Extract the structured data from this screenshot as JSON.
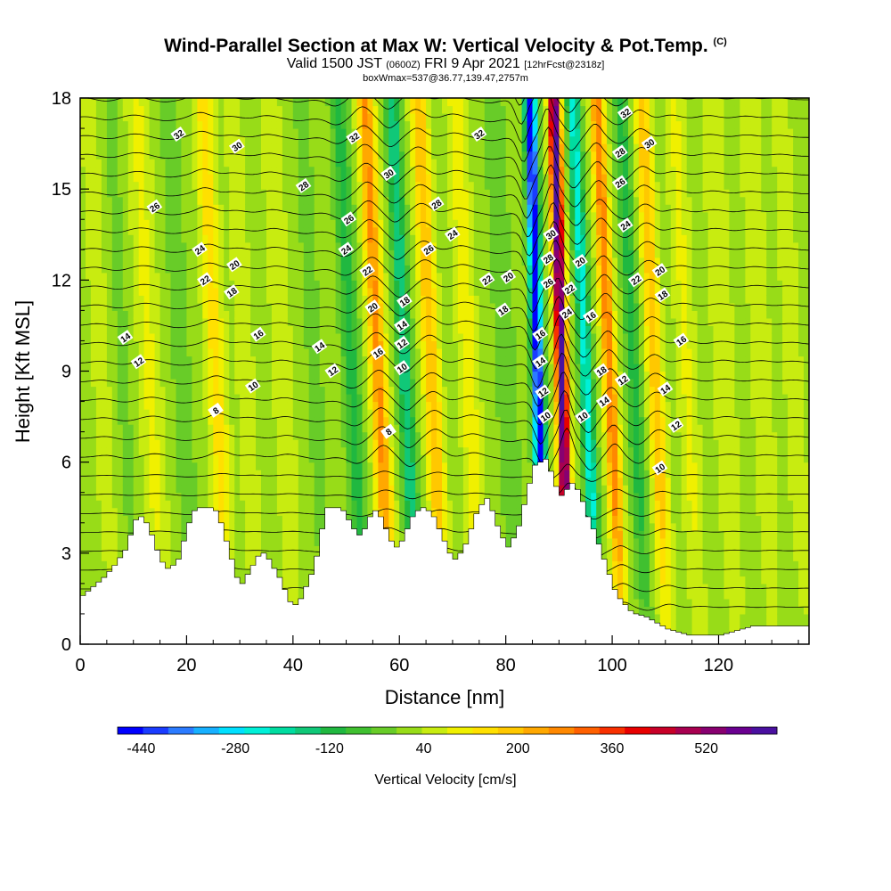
{
  "header": {
    "title": "Wind-Parallel Section at Max W: Vertical Velocity & Pot.Temp.",
    "title_mark": "(C)",
    "valid_prefix": "Valid 1500 JST",
    "valid_zulu": "(0600Z)",
    "valid_date": "FRI 9 Apr 2021",
    "forecast_info": "[12hrFcst@2318z]",
    "box_info": "boxWmax=537@36.77,139.47,2757m"
  },
  "chart_data": {
    "type": "heatmap",
    "title": "Wind-Parallel Section at Max W: Vertical Velocity & Pot.Temp.",
    "xlabel": "Distance [nm]",
    "ylabel": "Height [Kft MSL]",
    "xlim": [
      0,
      137
    ],
    "ylim": [
      0,
      18
    ],
    "x_ticks": [
      0,
      20,
      40,
      60,
      80,
      100,
      120
    ],
    "y_ticks": [
      0,
      3,
      6,
      9,
      12,
      15,
      18
    ],
    "colorbar": {
      "label": "Vertical Velocity [cm/s]",
      "min": -480,
      "max": 640,
      "step": 40,
      "tick_values": [
        -440,
        -280,
        -120,
        40,
        200,
        360,
        520
      ],
      "tick_labels": [
        "-440",
        "-280",
        "-120",
        "40",
        "200",
        "360",
        "520"
      ],
      "colors": [
        "#0000ff",
        "#1a3cff",
        "#2b7bff",
        "#17b0ff",
        "#00e0ff",
        "#00f0d8",
        "#00dca0",
        "#10c878",
        "#20b840",
        "#40c030",
        "#68cc28",
        "#98dc18",
        "#c8ec10",
        "#f0f000",
        "#ffe000",
        "#ffc800",
        "#ffa800",
        "#ff8800",
        "#ff6000",
        "#f83000",
        "#e80000",
        "#c80028",
        "#a80050",
        "#880070",
        "#6a0090",
        "#4a10a0"
      ]
    },
    "terrain_top_kft": [
      [
        0,
        1.6
      ],
      [
        2,
        1.9
      ],
      [
        4,
        2.2
      ],
      [
        6,
        2.6
      ],
      [
        8,
        3.1
      ],
      [
        9,
        3.6
      ],
      [
        10,
        4.1
      ],
      [
        11,
        4.2
      ],
      [
        12,
        4.0
      ],
      [
        13,
        3.6
      ],
      [
        14,
        3.1
      ],
      [
        15,
        2.7
      ],
      [
        16,
        2.5
      ],
      [
        17,
        2.6
      ],
      [
        18,
        2.8
      ],
      [
        19,
        3.4
      ],
      [
        20,
        4.0
      ],
      [
        21,
        4.4
      ],
      [
        22,
        4.5
      ],
      [
        24,
        4.5
      ],
      [
        25,
        4.4
      ],
      [
        26,
        4.0
      ],
      [
        27,
        3.4
      ],
      [
        28,
        2.8
      ],
      [
        29,
        2.2
      ],
      [
        30,
        2.0
      ],
      [
        31,
        2.3
      ],
      [
        32,
        2.6
      ],
      [
        33,
        2.9
      ],
      [
        34,
        3.0
      ],
      [
        35,
        2.8
      ],
      [
        36,
        2.5
      ],
      [
        37,
        2.2
      ],
      [
        38,
        1.8
      ],
      [
        39,
        1.4
      ],
      [
        40,
        1.3
      ],
      [
        41,
        1.5
      ],
      [
        42,
        1.9
      ],
      [
        43,
        2.3
      ],
      [
        44,
        2.9
      ],
      [
        45,
        3.8
      ],
      [
        46,
        4.5
      ],
      [
        48,
        4.5
      ],
      [
        49,
        4.4
      ],
      [
        50,
        4.1
      ],
      [
        51,
        3.8
      ],
      [
        52,
        3.6
      ],
      [
        53,
        3.8
      ],
      [
        54,
        4.2
      ],
      [
        55,
        4.4
      ],
      [
        56,
        4.2
      ],
      [
        57,
        3.8
      ],
      [
        58,
        3.4
      ],
      [
        59,
        3.2
      ],
      [
        60,
        3.4
      ],
      [
        61,
        3.8
      ],
      [
        62,
        4.2
      ],
      [
        63,
        4.4
      ],
      [
        64,
        4.5
      ],
      [
        65,
        4.4
      ],
      [
        66,
        4.2
      ],
      [
        67,
        3.8
      ],
      [
        68,
        3.4
      ],
      [
        69,
        3.0
      ],
      [
        70,
        2.8
      ],
      [
        71,
        3.0
      ],
      [
        72,
        3.3
      ],
      [
        73,
        3.8
      ],
      [
        74,
        4.3
      ],
      [
        75,
        4.6
      ],
      [
        76,
        4.8
      ],
      [
        77,
        4.4
      ],
      [
        78,
        3.9
      ],
      [
        79,
        3.5
      ],
      [
        80,
        3.2
      ],
      [
        81,
        3.5
      ],
      [
        82,
        3.9
      ],
      [
        83,
        4.6
      ],
      [
        84,
        5.3
      ],
      [
        85,
        5.9
      ],
      [
        86,
        6.0
      ],
      [
        87,
        6.1
      ],
      [
        88,
        5.7
      ],
      [
        89,
        5.2
      ],
      [
        90,
        4.9
      ],
      [
        91,
        5.1
      ],
      [
        92,
        5.3
      ],
      [
        93,
        5.1
      ],
      [
        94,
        4.7
      ],
      [
        95,
        4.2
      ],
      [
        96,
        3.8
      ],
      [
        97,
        3.3
      ],
      [
        98,
        2.8
      ],
      [
        99,
        2.3
      ],
      [
        100,
        1.8
      ],
      [
        101,
        1.5
      ],
      [
        102,
        1.3
      ],
      [
        103,
        1.1
      ],
      [
        104,
        1.0
      ],
      [
        106,
        0.9
      ],
      [
        108,
        0.7
      ],
      [
        110,
        0.5
      ],
      [
        112,
        0.4
      ],
      [
        114,
        0.3
      ],
      [
        116,
        0.3
      ],
      [
        118,
        0.3
      ],
      [
        120,
        0.3
      ],
      [
        122,
        0.4
      ],
      [
        124,
        0.5
      ],
      [
        126,
        0.6
      ],
      [
        128,
        0.6
      ],
      [
        130,
        0.6
      ],
      [
        132,
        0.6
      ],
      [
        134,
        0.6
      ],
      [
        137,
        0.6
      ]
    ],
    "theta_contour_labels": [
      {
        "x": 18.5,
        "y": 16.8,
        "v": "32"
      },
      {
        "x": 29.5,
        "y": 16.4,
        "v": "30"
      },
      {
        "x": 51.5,
        "y": 16.7,
        "v": "32"
      },
      {
        "x": 75.0,
        "y": 16.8,
        "v": "32"
      },
      {
        "x": 58.0,
        "y": 15.5,
        "v": "30"
      },
      {
        "x": 42.0,
        "y": 15.1,
        "v": "28"
      },
      {
        "x": 14.0,
        "y": 14.4,
        "v": "26"
      },
      {
        "x": 50.5,
        "y": 14.0,
        "v": "26"
      },
      {
        "x": 67.0,
        "y": 14.5,
        "v": "28"
      },
      {
        "x": 22.5,
        "y": 13.0,
        "v": "24"
      },
      {
        "x": 50.0,
        "y": 13.0,
        "v": "24"
      },
      {
        "x": 65.5,
        "y": 13.0,
        "v": "26"
      },
      {
        "x": 70.0,
        "y": 13.5,
        "v": "24"
      },
      {
        "x": 29.0,
        "y": 12.5,
        "v": "20"
      },
      {
        "x": 23.5,
        "y": 12.0,
        "v": "22"
      },
      {
        "x": 54.0,
        "y": 12.3,
        "v": "22"
      },
      {
        "x": 76.5,
        "y": 12.0,
        "v": "22"
      },
      {
        "x": 80.5,
        "y": 12.1,
        "v": "20"
      },
      {
        "x": 28.5,
        "y": 11.6,
        "v": "18"
      },
      {
        "x": 55.0,
        "y": 11.1,
        "v": "20"
      },
      {
        "x": 61.0,
        "y": 11.3,
        "v": "18"
      },
      {
        "x": 79.5,
        "y": 11.0,
        "v": "18"
      },
      {
        "x": 33.5,
        "y": 10.2,
        "v": "16"
      },
      {
        "x": 60.5,
        "y": 10.5,
        "v": "14"
      },
      {
        "x": 8.5,
        "y": 10.1,
        "v": "14"
      },
      {
        "x": 45.0,
        "y": 9.8,
        "v": "14"
      },
      {
        "x": 60.5,
        "y": 9.9,
        "v": "12"
      },
      {
        "x": 56.0,
        "y": 9.6,
        "v": "16"
      },
      {
        "x": 11.0,
        "y": 9.3,
        "v": "12"
      },
      {
        "x": 47.5,
        "y": 9.0,
        "v": "12"
      },
      {
        "x": 60.5,
        "y": 9.1,
        "v": "10"
      },
      {
        "x": 32.5,
        "y": 8.5,
        "v": "10"
      },
      {
        "x": 25.5,
        "y": 7.7,
        "v": "8"
      },
      {
        "x": 58.0,
        "y": 7.0,
        "v": "8"
      },
      {
        "x": 88.5,
        "y": 13.5,
        "v": "30"
      },
      {
        "x": 88.0,
        "y": 12.7,
        "v": "28"
      },
      {
        "x": 88.0,
        "y": 11.9,
        "v": "26"
      },
      {
        "x": 94.0,
        "y": 12.6,
        "v": "20"
      },
      {
        "x": 92.0,
        "y": 11.7,
        "v": "22"
      },
      {
        "x": 91.5,
        "y": 10.9,
        "v": "24"
      },
      {
        "x": 96.0,
        "y": 10.8,
        "v": "16"
      },
      {
        "x": 86.5,
        "y": 10.2,
        "v": "16"
      },
      {
        "x": 86.5,
        "y": 9.3,
        "v": "14"
      },
      {
        "x": 87.0,
        "y": 8.3,
        "v": "12"
      },
      {
        "x": 87.5,
        "y": 7.5,
        "v": "10"
      },
      {
        "x": 94.5,
        "y": 7.5,
        "v": "10"
      },
      {
        "x": 98.5,
        "y": 8.0,
        "v": "14"
      },
      {
        "x": 98.0,
        "y": 9.0,
        "v": "18"
      },
      {
        "x": 102.5,
        "y": 17.5,
        "v": "32"
      },
      {
        "x": 101.5,
        "y": 16.2,
        "v": "28"
      },
      {
        "x": 101.5,
        "y": 15.2,
        "v": "26"
      },
      {
        "x": 107.0,
        "y": 16.5,
        "v": "30"
      },
      {
        "x": 102.5,
        "y": 13.8,
        "v": "24"
      },
      {
        "x": 104.5,
        "y": 12.0,
        "v": "22"
      },
      {
        "x": 109.0,
        "y": 12.3,
        "v": "20"
      },
      {
        "x": 109.5,
        "y": 11.5,
        "v": "18"
      },
      {
        "x": 113.0,
        "y": 10.0,
        "v": "16"
      },
      {
        "x": 102.0,
        "y": 8.7,
        "v": "12"
      },
      {
        "x": 110.0,
        "y": 8.4,
        "v": "14"
      },
      {
        "x": 112.0,
        "y": 7.2,
        "v": "12"
      },
      {
        "x": 109.0,
        "y": 5.8,
        "v": "10"
      }
    ]
  }
}
